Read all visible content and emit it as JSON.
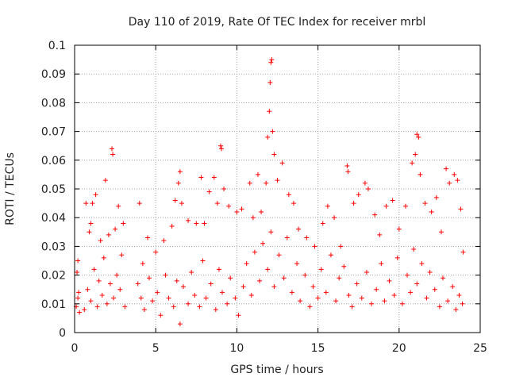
{
  "chart_data": {
    "type": "scatter",
    "title": "Day 110 of 2019, Rate Of TEC Index for receiver mrbl",
    "xlabel": "GPS time / hours",
    "ylabel": "ROTI / TECUs",
    "xlim": [
      0,
      25
    ],
    "ylim": [
      0,
      0.1
    ],
    "x_ticks": [
      0,
      5,
      10,
      15,
      20,
      25
    ],
    "x_tick_labels": [
      "0",
      "5",
      "10",
      "15",
      "20",
      "25"
    ],
    "y_ticks": [
      0,
      0.01,
      0.02,
      0.03,
      0.04,
      0.05,
      0.06,
      0.07,
      0.08,
      0.09,
      0.1
    ],
    "y_tick_labels": [
      "0",
      "0.01",
      "0.02",
      "0.03",
      "0.04",
      "0.05",
      "0.06",
      "0.07",
      "0.08",
      "0.09",
      "0.1"
    ],
    "grid": true,
    "marker": "+",
    "series": [
      {
        "name": "ROTI",
        "color": "#ff0000",
        "points": [
          [
            0.1,
            0.009
          ],
          [
            0.15,
            0.021
          ],
          [
            0.2,
            0.025
          ],
          [
            0.25,
            0.014
          ],
          [
            0.3,
            0.007
          ],
          [
            0.7,
            0.045
          ],
          [
            0.9,
            0.035
          ],
          [
            1.0,
            0.038
          ],
          [
            1.1,
            0.045
          ],
          [
            1.3,
            0.048
          ],
          [
            1.6,
            0.032
          ],
          [
            1.9,
            0.053
          ],
          [
            2.1,
            0.034
          ],
          [
            2.3,
            0.064
          ],
          [
            2.35,
            0.062
          ],
          [
            2.5,
            0.036
          ],
          [
            2.7,
            0.044
          ],
          [
            3.0,
            0.038
          ],
          [
            4.0,
            0.045
          ],
          [
            4.2,
            0.024
          ],
          [
            4.5,
            0.033
          ],
          [
            5.0,
            0.028
          ],
          [
            5.5,
            0.032
          ],
          [
            6.0,
            0.037
          ],
          [
            6.2,
            0.046
          ],
          [
            6.4,
            0.052
          ],
          [
            6.5,
            0.056
          ],
          [
            6.6,
            0.045
          ],
          [
            7.0,
            0.039
          ],
          [
            7.5,
            0.038
          ],
          [
            7.8,
            0.054
          ],
          [
            8.0,
            0.038
          ],
          [
            8.3,
            0.049
          ],
          [
            8.6,
            0.054
          ],
          [
            8.8,
            0.045
          ],
          [
            9.0,
            0.065
          ],
          [
            9.05,
            0.064
          ],
          [
            9.2,
            0.05
          ],
          [
            9.5,
            0.044
          ],
          [
            10.0,
            0.042
          ],
          [
            10.3,
            0.043
          ],
          [
            10.8,
            0.052
          ],
          [
            11.0,
            0.04
          ],
          [
            11.3,
            0.055
          ],
          [
            11.5,
            0.042
          ],
          [
            11.8,
            0.052
          ],
          [
            11.9,
            0.068
          ],
          [
            12.0,
            0.077
          ],
          [
            12.05,
            0.087
          ],
          [
            12.1,
            0.094
          ],
          [
            12.15,
            0.095
          ],
          [
            12.2,
            0.07
          ],
          [
            12.3,
            0.062
          ],
          [
            12.5,
            0.053
          ],
          [
            12.8,
            0.059
          ],
          [
            13.2,
            0.048
          ],
          [
            13.5,
            0.045
          ],
          [
            13.8,
            0.036
          ],
          [
            14.3,
            0.033
          ],
          [
            14.8,
            0.03
          ],
          [
            15.3,
            0.038
          ],
          [
            15.6,
            0.044
          ],
          [
            16.0,
            0.04
          ],
          [
            16.4,
            0.03
          ],
          [
            16.8,
            0.058
          ],
          [
            16.85,
            0.056
          ],
          [
            17.2,
            0.045
          ],
          [
            17.5,
            0.048
          ],
          [
            17.9,
            0.052
          ],
          [
            18.1,
            0.05
          ],
          [
            18.5,
            0.041
          ],
          [
            18.8,
            0.034
          ],
          [
            19.2,
            0.044
          ],
          [
            19.6,
            0.046
          ],
          [
            20.0,
            0.036
          ],
          [
            20.4,
            0.044
          ],
          [
            20.8,
            0.059
          ],
          [
            21.0,
            0.062
          ],
          [
            21.1,
            0.069
          ],
          [
            21.2,
            0.068
          ],
          [
            21.3,
            0.055
          ],
          [
            21.6,
            0.045
          ],
          [
            22.0,
            0.042
          ],
          [
            22.3,
            0.047
          ],
          [
            22.6,
            0.035
          ],
          [
            22.9,
            0.057
          ],
          [
            23.1,
            0.052
          ],
          [
            23.4,
            0.055
          ],
          [
            23.6,
            0.053
          ],
          [
            23.8,
            0.043
          ],
          [
            23.95,
            0.028
          ],
          [
            0.2,
            0.012
          ],
          [
            0.6,
            0.008
          ],
          [
            0.8,
            0.015
          ],
          [
            1.0,
            0.011
          ],
          [
            1.2,
            0.022
          ],
          [
            1.4,
            0.009
          ],
          [
            1.5,
            0.018
          ],
          [
            1.7,
            0.013
          ],
          [
            1.8,
            0.026
          ],
          [
            2.0,
            0.01
          ],
          [
            2.2,
            0.017
          ],
          [
            2.4,
            0.012
          ],
          [
            2.6,
            0.02
          ],
          [
            2.8,
            0.015
          ],
          [
            2.9,
            0.027
          ],
          [
            3.1,
            0.009
          ],
          [
            3.9,
            0.017
          ],
          [
            4.1,
            0.012
          ],
          [
            4.3,
            0.008
          ],
          [
            4.6,
            0.019
          ],
          [
            4.8,
            0.011
          ],
          [
            5.1,
            0.014
          ],
          [
            5.3,
            0.006
          ],
          [
            5.6,
            0.02
          ],
          [
            5.8,
            0.012
          ],
          [
            6.1,
            0.009
          ],
          [
            6.3,
            0.018
          ],
          [
            6.5,
            0.003
          ],
          [
            6.7,
            0.016
          ],
          [
            7.0,
            0.01
          ],
          [
            7.2,
            0.021
          ],
          [
            7.4,
            0.013
          ],
          [
            7.7,
            0.009
          ],
          [
            7.9,
            0.025
          ],
          [
            8.1,
            0.012
          ],
          [
            8.4,
            0.017
          ],
          [
            8.7,
            0.008
          ],
          [
            8.9,
            0.022
          ],
          [
            9.1,
            0.014
          ],
          [
            9.4,
            0.01
          ],
          [
            9.6,
            0.019
          ],
          [
            9.9,
            0.012
          ],
          [
            10.1,
            0.006
          ],
          [
            10.4,
            0.016
          ],
          [
            10.6,
            0.024
          ],
          [
            10.9,
            0.013
          ],
          [
            11.1,
            0.028
          ],
          [
            11.4,
            0.018
          ],
          [
            11.6,
            0.031
          ],
          [
            11.9,
            0.022
          ],
          [
            12.1,
            0.035
          ],
          [
            12.3,
            0.016
          ],
          [
            12.6,
            0.027
          ],
          [
            12.9,
            0.019
          ],
          [
            13.1,
            0.033
          ],
          [
            13.4,
            0.014
          ],
          [
            13.7,
            0.024
          ],
          [
            13.9,
            0.011
          ],
          [
            14.2,
            0.02
          ],
          [
            14.5,
            0.009
          ],
          [
            14.7,
            0.016
          ],
          [
            15.0,
            0.012
          ],
          [
            15.2,
            0.022
          ],
          [
            15.5,
            0.014
          ],
          [
            15.8,
            0.027
          ],
          [
            16.1,
            0.011
          ],
          [
            16.3,
            0.019
          ],
          [
            16.6,
            0.023
          ],
          [
            16.9,
            0.013
          ],
          [
            17.1,
            0.009
          ],
          [
            17.4,
            0.017
          ],
          [
            17.7,
            0.012
          ],
          [
            18.0,
            0.021
          ],
          [
            18.3,
            0.01
          ],
          [
            18.6,
            0.015
          ],
          [
            18.9,
            0.024
          ],
          [
            19.1,
            0.011
          ],
          [
            19.4,
            0.018
          ],
          [
            19.7,
            0.013
          ],
          [
            19.9,
            0.026
          ],
          [
            20.2,
            0.01
          ],
          [
            20.5,
            0.02
          ],
          [
            20.7,
            0.014
          ],
          [
            20.9,
            0.029
          ],
          [
            21.1,
            0.017
          ],
          [
            21.4,
            0.024
          ],
          [
            21.7,
            0.012
          ],
          [
            21.9,
            0.021
          ],
          [
            22.2,
            0.015
          ],
          [
            22.5,
            0.009
          ],
          [
            22.7,
            0.019
          ],
          [
            23.0,
            0.011
          ],
          [
            23.3,
            0.016
          ],
          [
            23.5,
            0.008
          ],
          [
            23.7,
            0.013
          ],
          [
            23.9,
            0.01
          ]
        ]
      }
    ]
  }
}
